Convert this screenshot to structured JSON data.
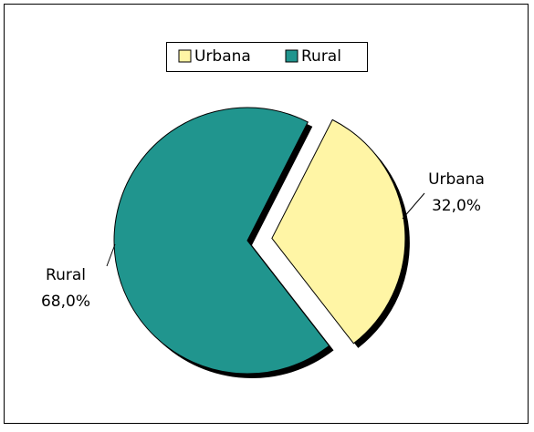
{
  "chart_data": {
    "type": "pie",
    "categories": [
      "Urbana",
      "Rural"
    ],
    "values": [
      32.0,
      68.0
    ],
    "value_labels": [
      "32,0%",
      "68,0%"
    ],
    "colors": [
      "#fff5a5",
      "#20958e"
    ],
    "legend": "top"
  }
}
